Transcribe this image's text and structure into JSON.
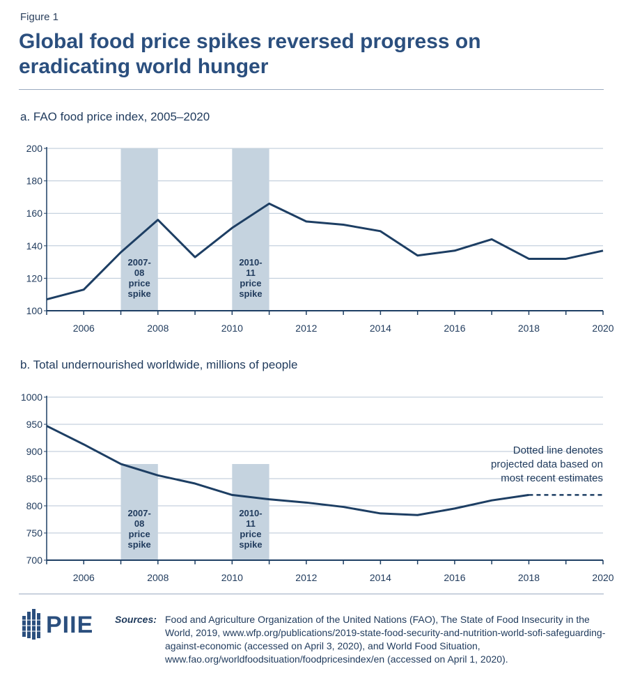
{
  "figure_label": "Figure 1",
  "title": "Global food price spikes reversed progress on eradicating world hunger",
  "colors": {
    "line": "#1d3e63",
    "shade": "#c5d3df",
    "axis": "#1d3e63",
    "grid": "#b7c6d6",
    "text": "#1f3a5c"
  },
  "chart_data": [
    {
      "type": "line",
      "title": "a. FAO food price index, 2005–2020",
      "xlim": [
        2005,
        2020
      ],
      "ylim": [
        100,
        200
      ],
      "yticks": [
        100,
        120,
        140,
        160,
        180,
        200
      ],
      "xticks": [
        2006,
        2008,
        2010,
        2012,
        2014,
        2016,
        2018,
        2020
      ],
      "grid": true,
      "series": [
        {
          "x": [
            2005,
            2006,
            2007,
            2008,
            2009,
            2010,
            2011,
            2012,
            2013,
            2014,
            2015,
            2016,
            2017,
            2018,
            2019,
            2020
          ],
          "y": [
            107,
            113,
            136,
            156,
            133,
            151,
            166,
            155,
            153,
            149,
            134,
            137,
            144,
            132,
            132,
            137
          ]
        }
      ],
      "shaded_regions": [
        {
          "from": 2007,
          "to": 2008,
          "label_lines": [
            "2007-",
            "08",
            "price",
            "spike"
          ]
        },
        {
          "from": 2010,
          "to": 2011,
          "label_lines": [
            "2010-",
            "11",
            "price",
            "spike"
          ]
        }
      ]
    },
    {
      "type": "line",
      "title": "b. Total undernourished worldwide, millions of people",
      "xlim": [
        2005,
        2020
      ],
      "ylim": [
        700,
        1000
      ],
      "yticks": [
        700,
        750,
        800,
        850,
        900,
        950,
        1000
      ],
      "xticks": [
        2006,
        2008,
        2010,
        2012,
        2014,
        2016,
        2018,
        2020
      ],
      "grid": true,
      "series": [
        {
          "x": [
            2005,
            2006,
            2007,
            2008,
            2009,
            2010,
            2011,
            2012,
            2013,
            2014,
            2015,
            2016,
            2017,
            2018
          ],
          "y": [
            947,
            913,
            877,
            856,
            841,
            820,
            812,
            806,
            798,
            786,
            783,
            795,
            810,
            820
          ]
        },
        {
          "style": "dotted",
          "x": [
            2018,
            2020
          ],
          "y": [
            820,
            820
          ]
        }
      ],
      "shaded_regions": [
        {
          "from": 2007,
          "to": 2008,
          "label_lines": [
            "2007-",
            "08",
            "price",
            "spike"
          ]
        },
        {
          "from": 2010,
          "to": 2011,
          "label_lines": [
            "2010-",
            "11",
            "price",
            "spike"
          ]
        }
      ],
      "annotation_lines": [
        "Dotted line denotes",
        "projected data based on",
        "most recent estimates"
      ]
    }
  ],
  "sources": {
    "label": "Sources:",
    "text": "Food and Agriculture Organization of the United Nations (FAO), The State of Food Insecurity in the World, 2019, www.wfp.org/publications/2019-state-food-security-and-nutrition-world-sofi-safeguarding-against-economic (accessed on April 3, 2020), and World Food Situation, www.fao.org/worldfoodsituation/foodpricesindex/en (accessed on April 1, 2020)."
  },
  "logo": {
    "text": "PIIE"
  }
}
